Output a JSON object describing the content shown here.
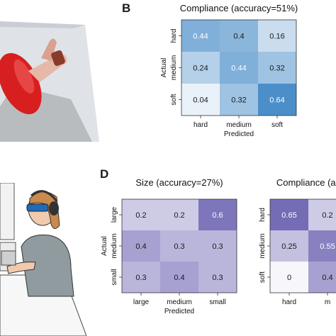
{
  "panels": {
    "b": "B",
    "d": "D"
  },
  "chart_data": [
    {
      "type": "heatmap",
      "title": "Compliance (accuracy=51%)",
      "xlabel": "Predicted",
      "ylabel": "Actual",
      "rows": [
        "hard",
        "medium",
        "soft"
      ],
      "cols": [
        "hard",
        "medium",
        "soft"
      ],
      "values": [
        [
          0.44,
          0.4,
          0.16
        ],
        [
          0.24,
          0.44,
          0.32
        ],
        [
          0.04,
          0.32,
          0.64
        ]
      ],
      "colormap": {
        "low": "#f4f8fc",
        "high": "#3b84c4"
      },
      "vmax": 0.7
    },
    {
      "type": "heatmap",
      "title": "Size (accuracy=27%)",
      "xlabel": "Predicted",
      "ylabel": "Actual",
      "rows": [
        "large",
        "medium",
        "small"
      ],
      "cols": [
        "large",
        "medium",
        "small"
      ],
      "values": [
        [
          0.2,
          0.2,
          0.6
        ],
        [
          0.4,
          0.3,
          0.3
        ],
        [
          0.3,
          0.4,
          0.3
        ]
      ],
      "colormap": {
        "low": "#f6f6fb",
        "high": "#6a61b0"
      },
      "vmax": 0.7
    },
    {
      "type": "heatmap",
      "title": "Compliance (ac",
      "xlabel": "",
      "ylabel": "",
      "rows": [
        "hard",
        "medium",
        "soft"
      ],
      "cols": [
        "hard",
        "m"
      ],
      "values": [
        [
          0.65,
          0.2
        ],
        [
          0.25,
          0.55
        ],
        [
          0,
          0.4
        ]
      ],
      "value_labels": [
        [
          "0.65",
          "0.2"
        ],
        [
          "0.25",
          "0.55"
        ],
        [
          "0",
          "0.4"
        ]
      ],
      "colormap": {
        "low": "#f6f6fb",
        "high": "#6a61b0"
      },
      "vmax": 0.7
    }
  ]
}
